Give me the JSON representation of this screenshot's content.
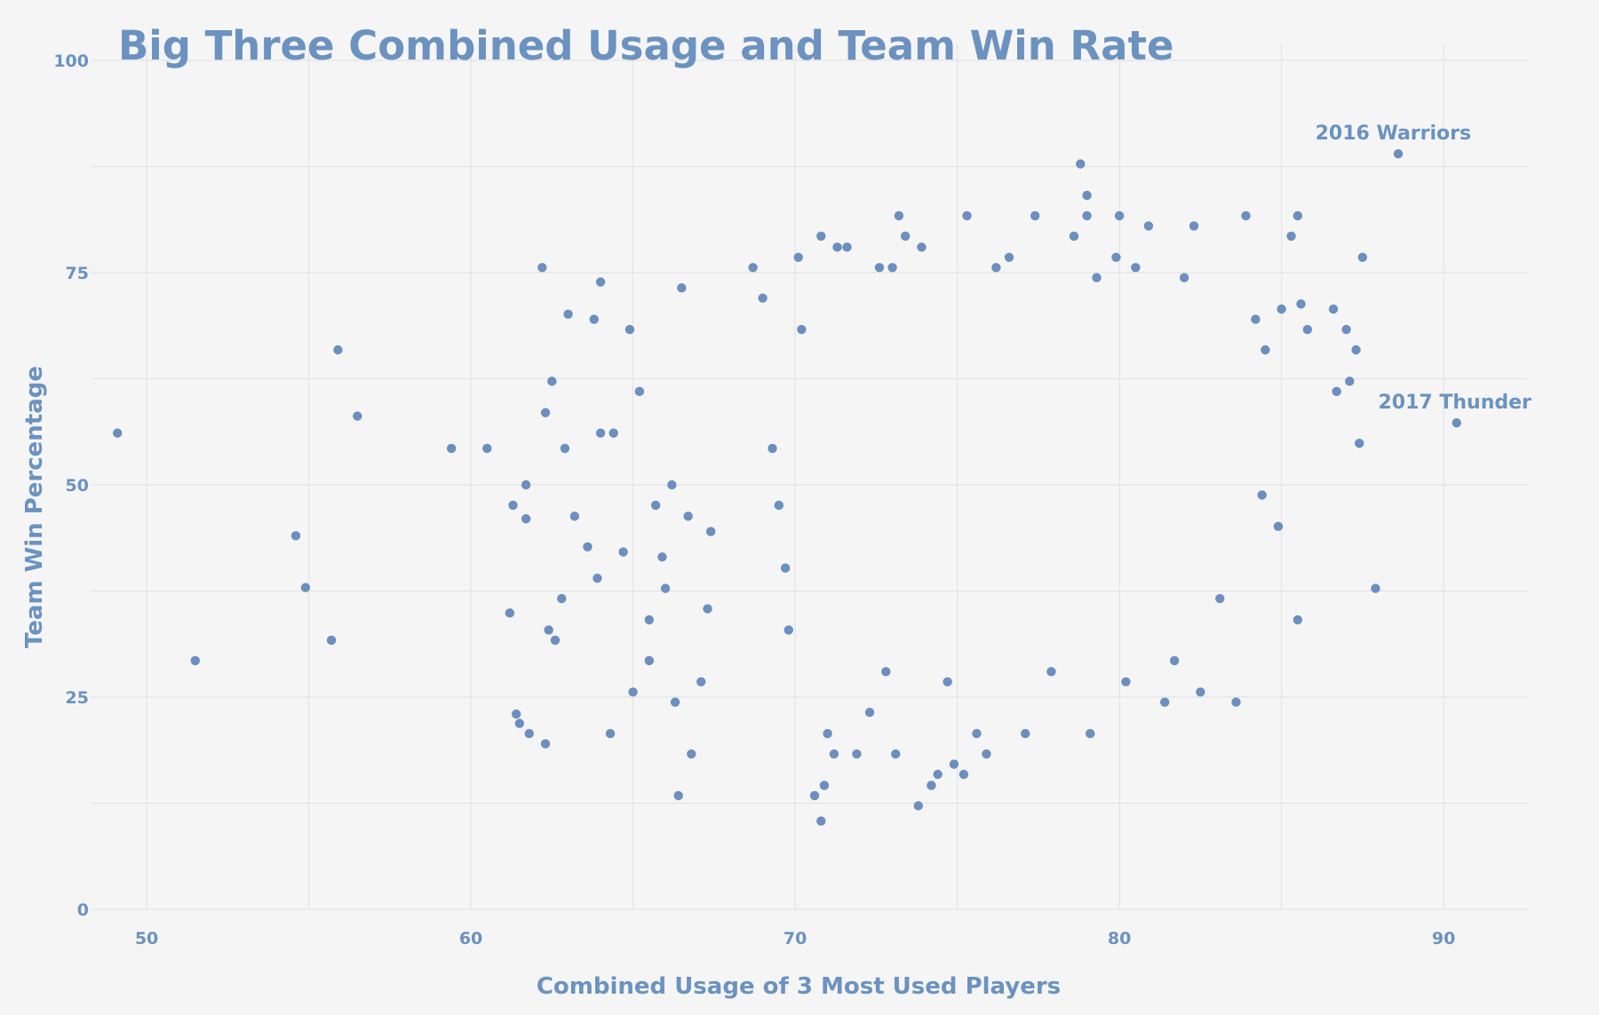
{
  "colors": {
    "background": "#f5f5f5",
    "accent": "#6b92c0",
    "point": "#6b8fbe",
    "grid": "#e0e0e0"
  },
  "chart_data": {
    "type": "scatter",
    "title": "Big Three Combined Usage and Team Win Rate",
    "xlabel": "Combined Usage of 3 Most Used Players",
    "ylabel": "Team Win Percentage",
    "xlim": [
      48.3,
      92.6
    ],
    "ylim": [
      0,
      100
    ],
    "x_ticks": [
      50,
      60,
      70,
      80,
      90
    ],
    "y_ticks": [
      0,
      25,
      50,
      75,
      100
    ],
    "x_minor_gridlines": [
      55,
      65,
      75,
      85
    ],
    "y_minor_gridlines": [
      12.5,
      37.5,
      62.5,
      87.5
    ],
    "grid": true,
    "legend": "none",
    "annotations": [
      {
        "text": "2016 Warriors",
        "x": 88.5,
        "y": 89.0
      },
      {
        "text": "2017 Thunder",
        "x": 90.4,
        "y": 57.3
      }
    ],
    "series": [
      {
        "points": [
          [
            49.1,
            56.1
          ],
          [
            51.5,
            29.3
          ],
          [
            54.6,
            44.0
          ],
          [
            54.9,
            37.9
          ],
          [
            55.7,
            31.7
          ],
          [
            55.9,
            65.9
          ],
          [
            56.5,
            58.1
          ],
          [
            59.4,
            54.3
          ],
          [
            60.5,
            54.3
          ],
          [
            61.2,
            34.9
          ],
          [
            61.3,
            47.6
          ],
          [
            61.4,
            23.0
          ],
          [
            61.5,
            21.9
          ],
          [
            61.7,
            50.0
          ],
          [
            61.7,
            46.0
          ],
          [
            61.8,
            20.7
          ],
          [
            62.2,
            75.6
          ],
          [
            62.3,
            58.5
          ],
          [
            62.4,
            32.9
          ],
          [
            62.5,
            62.2
          ],
          [
            62.3,
            19.5
          ],
          [
            62.6,
            31.7
          ],
          [
            62.8,
            36.6
          ],
          [
            62.9,
            54.3
          ],
          [
            63.0,
            70.1
          ],
          [
            63.2,
            46.3
          ],
          [
            63.6,
            42.7
          ],
          [
            63.8,
            69.5
          ],
          [
            63.9,
            39.0
          ],
          [
            64.0,
            73.9
          ],
          [
            64.0,
            56.1
          ],
          [
            64.3,
            20.7
          ],
          [
            64.4,
            56.1
          ],
          [
            64.7,
            42.1
          ],
          [
            64.9,
            68.3
          ],
          [
            65.0,
            25.6
          ],
          [
            65.2,
            61.0
          ],
          [
            65.5,
            29.3
          ],
          [
            65.5,
            34.1
          ],
          [
            65.7,
            47.6
          ],
          [
            65.9,
            41.5
          ],
          [
            66.0,
            37.8
          ],
          [
            66.2,
            50.0
          ],
          [
            66.3,
            24.4
          ],
          [
            66.4,
            13.4
          ],
          [
            66.5,
            73.2
          ],
          [
            66.7,
            46.3
          ],
          [
            66.8,
            18.3
          ],
          [
            67.1,
            26.8
          ],
          [
            67.3,
            35.4
          ],
          [
            67.4,
            44.5
          ],
          [
            68.7,
            75.6
          ],
          [
            69.0,
            72.0
          ],
          [
            69.3,
            54.3
          ],
          [
            69.5,
            47.6
          ],
          [
            69.7,
            40.2
          ],
          [
            69.8,
            32.9
          ],
          [
            70.1,
            76.8
          ],
          [
            70.2,
            68.3
          ],
          [
            70.6,
            13.4
          ],
          [
            70.8,
            10.4
          ],
          [
            70.8,
            79.3
          ],
          [
            70.9,
            14.6
          ],
          [
            71.0,
            20.7
          ],
          [
            71.2,
            18.3
          ],
          [
            71.3,
            78.0
          ],
          [
            71.6,
            78.0
          ],
          [
            71.9,
            18.3
          ],
          [
            72.3,
            23.2
          ],
          [
            72.6,
            75.6
          ],
          [
            72.8,
            28.0
          ],
          [
            73.0,
            75.6
          ],
          [
            73.1,
            18.3
          ],
          [
            73.2,
            81.7
          ],
          [
            73.4,
            79.3
          ],
          [
            73.8,
            12.2
          ],
          [
            73.9,
            78.0
          ],
          [
            74.2,
            14.6
          ],
          [
            74.4,
            15.9
          ],
          [
            74.7,
            26.8
          ],
          [
            74.9,
            17.1
          ],
          [
            75.2,
            15.9
          ],
          [
            75.3,
            81.7
          ],
          [
            75.6,
            20.7
          ],
          [
            75.9,
            18.3
          ],
          [
            76.2,
            75.6
          ],
          [
            76.6,
            76.8
          ],
          [
            77.1,
            20.7
          ],
          [
            77.4,
            81.7
          ],
          [
            77.9,
            28.0
          ],
          [
            78.6,
            79.3
          ],
          [
            78.8,
            87.8
          ],
          [
            79.0,
            84.1
          ],
          [
            79.0,
            81.7
          ],
          [
            79.1,
            20.7
          ],
          [
            79.3,
            74.4
          ],
          [
            79.9,
            76.8
          ],
          [
            80.0,
            81.7
          ],
          [
            80.2,
            26.8
          ],
          [
            80.5,
            75.6
          ],
          [
            80.9,
            80.5
          ],
          [
            81.4,
            24.4
          ],
          [
            81.7,
            29.3
          ],
          [
            82.0,
            74.4
          ],
          [
            82.3,
            80.5
          ],
          [
            82.5,
            25.6
          ],
          [
            83.1,
            36.6
          ],
          [
            83.6,
            24.4
          ],
          [
            83.9,
            81.7
          ],
          [
            84.2,
            69.5
          ],
          [
            84.4,
            48.8
          ],
          [
            84.5,
            65.9
          ],
          [
            84.9,
            45.1
          ],
          [
            85.0,
            70.7
          ],
          [
            85.3,
            79.3
          ],
          [
            85.5,
            81.7
          ],
          [
            85.5,
            34.1
          ],
          [
            85.6,
            71.3
          ],
          [
            85.8,
            68.3
          ],
          [
            86.6,
            70.7
          ],
          [
            86.7,
            61.0
          ],
          [
            87.0,
            68.3
          ],
          [
            87.1,
            62.2
          ],
          [
            87.3,
            65.9
          ],
          [
            87.4,
            54.9
          ],
          [
            87.5,
            76.8
          ],
          [
            87.9,
            37.8
          ],
          [
            88.6,
            89.0
          ],
          [
            90.4,
            57.3
          ]
        ]
      }
    ]
  }
}
